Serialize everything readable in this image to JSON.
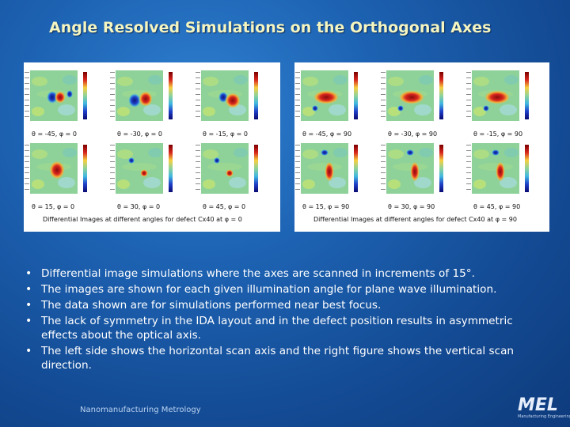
{
  "slide": {
    "title": "Angle Resolved Simulations on the Orthogonal Axes",
    "footer": "Nanomanufacturing Metrology",
    "logo_text": "MEL",
    "logo_subtext": "Manufacturing Engineering Laboratory"
  },
  "figures": {
    "left": {
      "caption": "Differential Images at different angles for defect Cx40 at φ = 0",
      "images": [
        {
          "label": "θ = -45,  φ = 0",
          "feature": "dipole-dark-red"
        },
        {
          "label": "θ = -30,  φ = 0",
          "feature": "dipole-blue-red"
        },
        {
          "label": "θ = -15,  φ = 0",
          "feature": "dipole-red"
        },
        {
          "label": "θ = 15,  φ = 0",
          "feature": "spot-red"
        },
        {
          "label": "θ = 30,  φ = 0",
          "feature": "faint"
        },
        {
          "label": "θ = 45,  φ = 0",
          "feature": "faint"
        }
      ]
    },
    "right": {
      "caption": "Differential Images at different angles for defect Cx40 at φ = 90",
      "images": [
        {
          "label": "θ = -45,  φ = 90",
          "feature": "horizontal-red"
        },
        {
          "label": "θ = -30,  φ = 90",
          "feature": "horizontal-red"
        },
        {
          "label": "θ = -15,  φ = 90",
          "feature": "horizontal-red"
        },
        {
          "label": "θ = 15,  φ = 90",
          "feature": "vertical-streak"
        },
        {
          "label": "θ = 30,  φ = 90",
          "feature": "vertical-streak"
        },
        {
          "label": "θ = 45,  φ = 90",
          "feature": "vertical-streak"
        }
      ]
    }
  },
  "bullets": [
    "Differential image simulations where the axes are scanned in increments of 15°.",
    "The images are shown for each given illumination angle for plane wave illumination.",
    "The data shown are for simulations performed near best focus.",
    "The lack of symmetry in the IDA layout and in the defect position results in asymmetric effects about the optical axis.",
    "The left side shows the horizontal scan axis and the right figure shows the vertical scan direction."
  ],
  "colors": {
    "background": "#1d62b2",
    "title": "#f4f5c0",
    "map_field": "#8ed29a",
    "map_positive": "#d8261e",
    "map_negative": "#1f3fc8"
  }
}
